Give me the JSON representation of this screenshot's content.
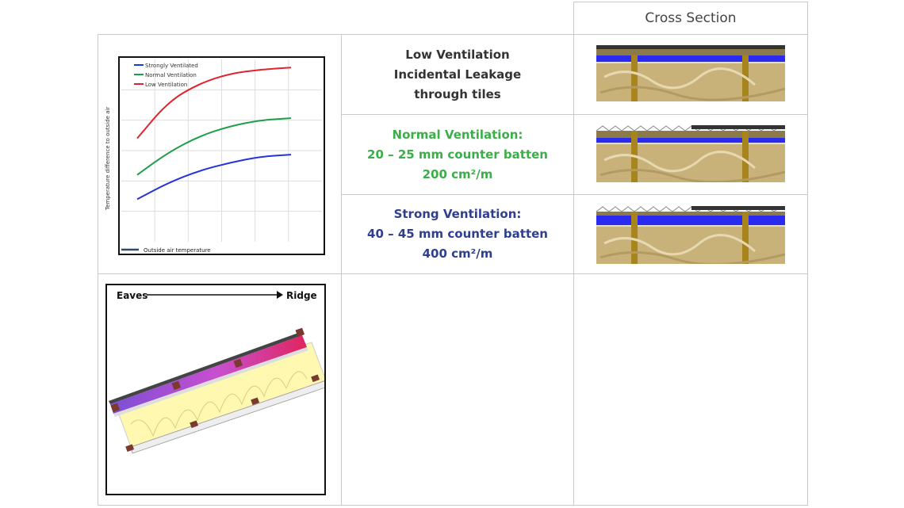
{
  "table": {
    "header": "Cross Section"
  },
  "rows": [
    {
      "lines": [
        "Low Ventilation",
        "Incidental Leakage",
        "through tiles"
      ]
    },
    {
      "lines": [
        "Normal Ventilation:",
        "20 – 25 mm counter batten",
        "200 cm²/m"
      ]
    },
    {
      "lines": [
        "Strong Ventilation:",
        "40 – 45 mm counter batten",
        "400 cm²/m"
      ]
    }
  ],
  "chart_data": {
    "type": "line",
    "ylabel": "Temperature difference to outside air",
    "xlabel": "",
    "baseline_label": "Outside air temperature",
    "grid": true,
    "legend": "top-left",
    "series": [
      {
        "name": "Strongly Ventilated",
        "color": "#2434d6",
        "x": [
          0,
          1,
          2,
          3,
          4,
          5
        ],
        "y": [
          2.1,
          2.9,
          3.5,
          3.9,
          4.2,
          4.3
        ]
      },
      {
        "name": "Normal Ventilation",
        "color": "#1f9e4a",
        "x": [
          0,
          1,
          2,
          3,
          4,
          5
        ],
        "y": [
          3.3,
          4.4,
          5.2,
          5.7,
          6.0,
          6.1
        ]
      },
      {
        "name": "Low Ventilation",
        "color": "#e0242f",
        "x": [
          0,
          1,
          2,
          3,
          4,
          5
        ],
        "y": [
          5.1,
          6.9,
          7.8,
          8.3,
          8.5,
          8.6
        ]
      }
    ],
    "ylim": [
      0,
      9
    ],
    "xlim": [
      0,
      5
    ]
  },
  "roof": {
    "left_label": "Eaves",
    "right_label": "Ridge"
  },
  "colors": {
    "grid": "#c9c9c9",
    "normal_green": "#3cae49",
    "strong_blue": "#2f3f8f",
    "air_blue": "#2b2bf0",
    "wood": "#a8851c"
  }
}
